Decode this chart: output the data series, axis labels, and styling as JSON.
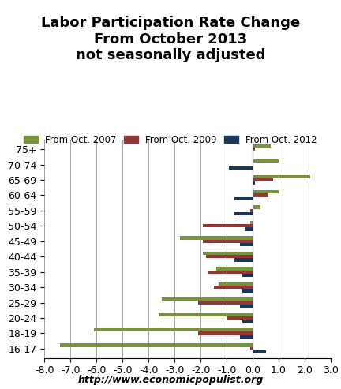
{
  "title": "Labor Participation Rate Change\nFrom October 2013\nnot seasonally adjusted",
  "subtitle_url": "http://www.economicpopulist.org",
  "categories": [
    "16-17",
    "18-19",
    "20-24",
    "25-29",
    "30-34",
    "35-39",
    "40-44",
    "45-49",
    "50-54",
    "55-59",
    "60-64",
    "65-69",
    "70-74",
    "75+"
  ],
  "series": {
    "From Oct. 2007": [
      -7.4,
      -6.1,
      -3.6,
      -3.5,
      -1.3,
      -1.4,
      -1.9,
      -2.8,
      -0.1,
      0.3,
      1.0,
      2.2,
      1.0,
      0.7
    ],
    "From Oct. 2009": [
      -0.1,
      -2.1,
      -1.0,
      -2.1,
      -1.5,
      -1.7,
      -1.8,
      -1.9,
      -1.9,
      -0.1,
      0.6,
      0.8,
      0.0,
      0.1
    ],
    "From Oct. 2012": [
      0.5,
      -0.5,
      -0.4,
      -0.5,
      -0.4,
      -0.4,
      -0.7,
      -0.5,
      -0.3,
      -0.7,
      -0.7,
      0.1,
      -0.9,
      0.0
    ]
  },
  "colors": {
    "From Oct. 2007": "#77933c",
    "From Oct. 2009": "#943634",
    "From Oct. 2012": "#17375e"
  },
  "xlim": [
    -8.0,
    3.0
  ],
  "xticks": [
    -8.0,
    -7.0,
    -6.0,
    -5.0,
    -4.0,
    -3.0,
    -2.0,
    -1.0,
    0.0,
    1.0,
    2.0,
    3.0
  ],
  "background_color": "#ffffff",
  "bar_height": 0.22,
  "title_fontsize": 13,
  "legend_fontsize": 8.5,
  "tick_fontsize": 9
}
